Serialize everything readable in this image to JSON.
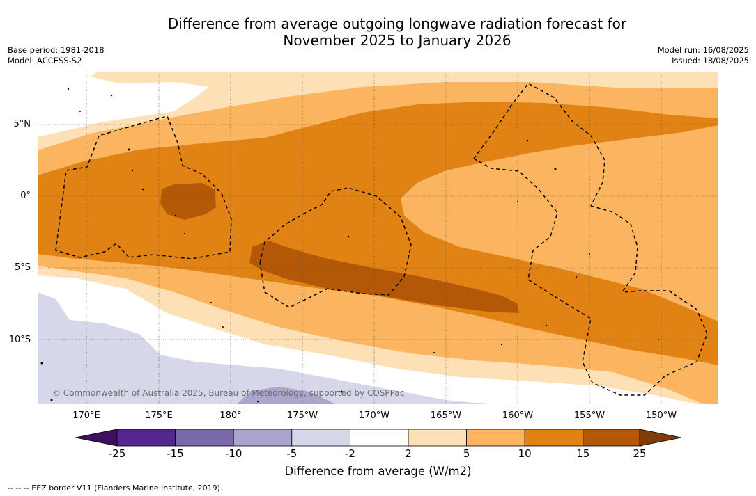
{
  "title_line1": "Difference from average outgoing longwave radiation forecast for",
  "title_line2": "November 2025 to January 2026",
  "base_period": "Base period: 1981-2018",
  "model": "Model: ACCESS-S2",
  "model_run": "Model run: 16/08/2025",
  "issued": "Issued: 18/08/2025",
  "copyright": "© Commonwealth of Australia 2025, Bureau of Meteorology, supported by COSPPac",
  "lat_labels": [
    "5°N",
    "0°",
    "5°S",
    "10°S"
  ],
  "lon_labels": [
    "170°E",
    "175°E",
    "180°",
    "175°W",
    "170°W",
    "165°W",
    "160°W",
    "155°W",
    "150°W"
  ],
  "colorbar": {
    "title": "Difference from average (W/m2)",
    "ticks": [
      "-25",
      "-15",
      "-10",
      "-5",
      "-2",
      "2",
      "5",
      "10",
      "15",
      "25"
    ],
    "colors": [
      "#3d0f5c",
      "#54278f",
      "#7b6aab",
      "#aba5ce",
      "#d7d7ea",
      "#ffffff",
      "#fde0b5",
      "#fbb45f",
      "#e08214",
      "#b35806",
      "#7f3b08"
    ]
  },
  "footer": "-- -- -- EEZ border V11 (Flanders Marine Institute, 2019)."
}
